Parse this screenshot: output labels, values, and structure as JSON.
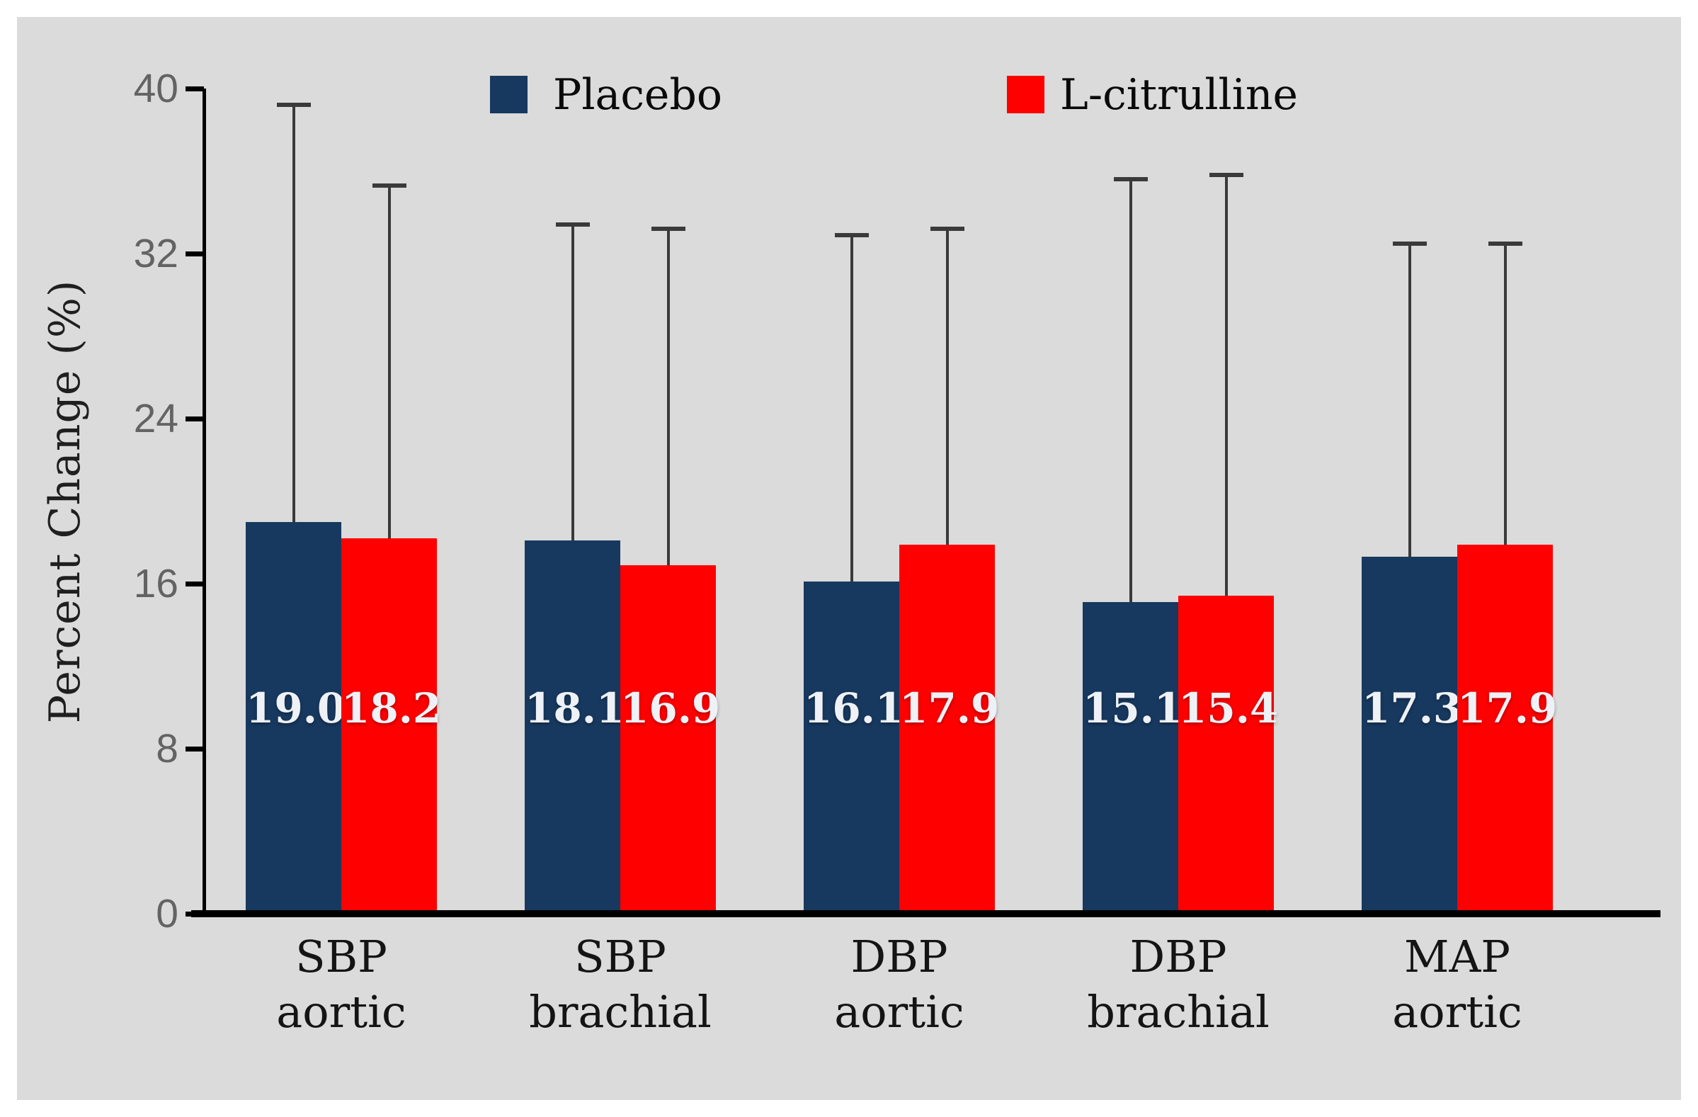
{
  "figure": {
    "background": "#ffffff",
    "panel_background": "#dbdbdb",
    "axis_color": "#000000",
    "error_bar_color": "#3a3a3a",
    "tick_label_color": "#636363"
  },
  "legend": {
    "items": [
      {
        "label": "Placebo",
        "color": "#17395f"
      },
      {
        "label": "L-citrulline",
        "color": "#fe0000"
      }
    ]
  },
  "chart_data": {
    "type": "bar",
    "title": "",
    "ylabel": "Percent Change (%)",
    "xlabel": "",
    "ylim": [
      0,
      40
    ],
    "yticks": [
      0,
      8,
      16,
      24,
      32,
      40
    ],
    "grid": false,
    "legend_position": "top",
    "categories": [
      [
        "SBP",
        "aortic"
      ],
      [
        "SBP",
        "brachial"
      ],
      [
        "DBP",
        "aortic"
      ],
      [
        "DBP",
        "brachial"
      ],
      [
        "MAP",
        "aortic"
      ]
    ],
    "series": [
      {
        "name": "Placebo",
        "color": "#17395f",
        "values": [
          19.0,
          18.1,
          16.1,
          15.1,
          17.3
        ],
        "error_bar_top": [
          39.3,
          33.5,
          33.0,
          35.7,
          32.6
        ]
      },
      {
        "name": "L-citrulline",
        "color": "#fe0000",
        "values": [
          18.2,
          16.9,
          17.9,
          15.4,
          17.9
        ],
        "error_bar_top": [
          35.4,
          33.3,
          33.3,
          35.9,
          32.6
        ]
      }
    ],
    "value_label_decimals": 1
  }
}
